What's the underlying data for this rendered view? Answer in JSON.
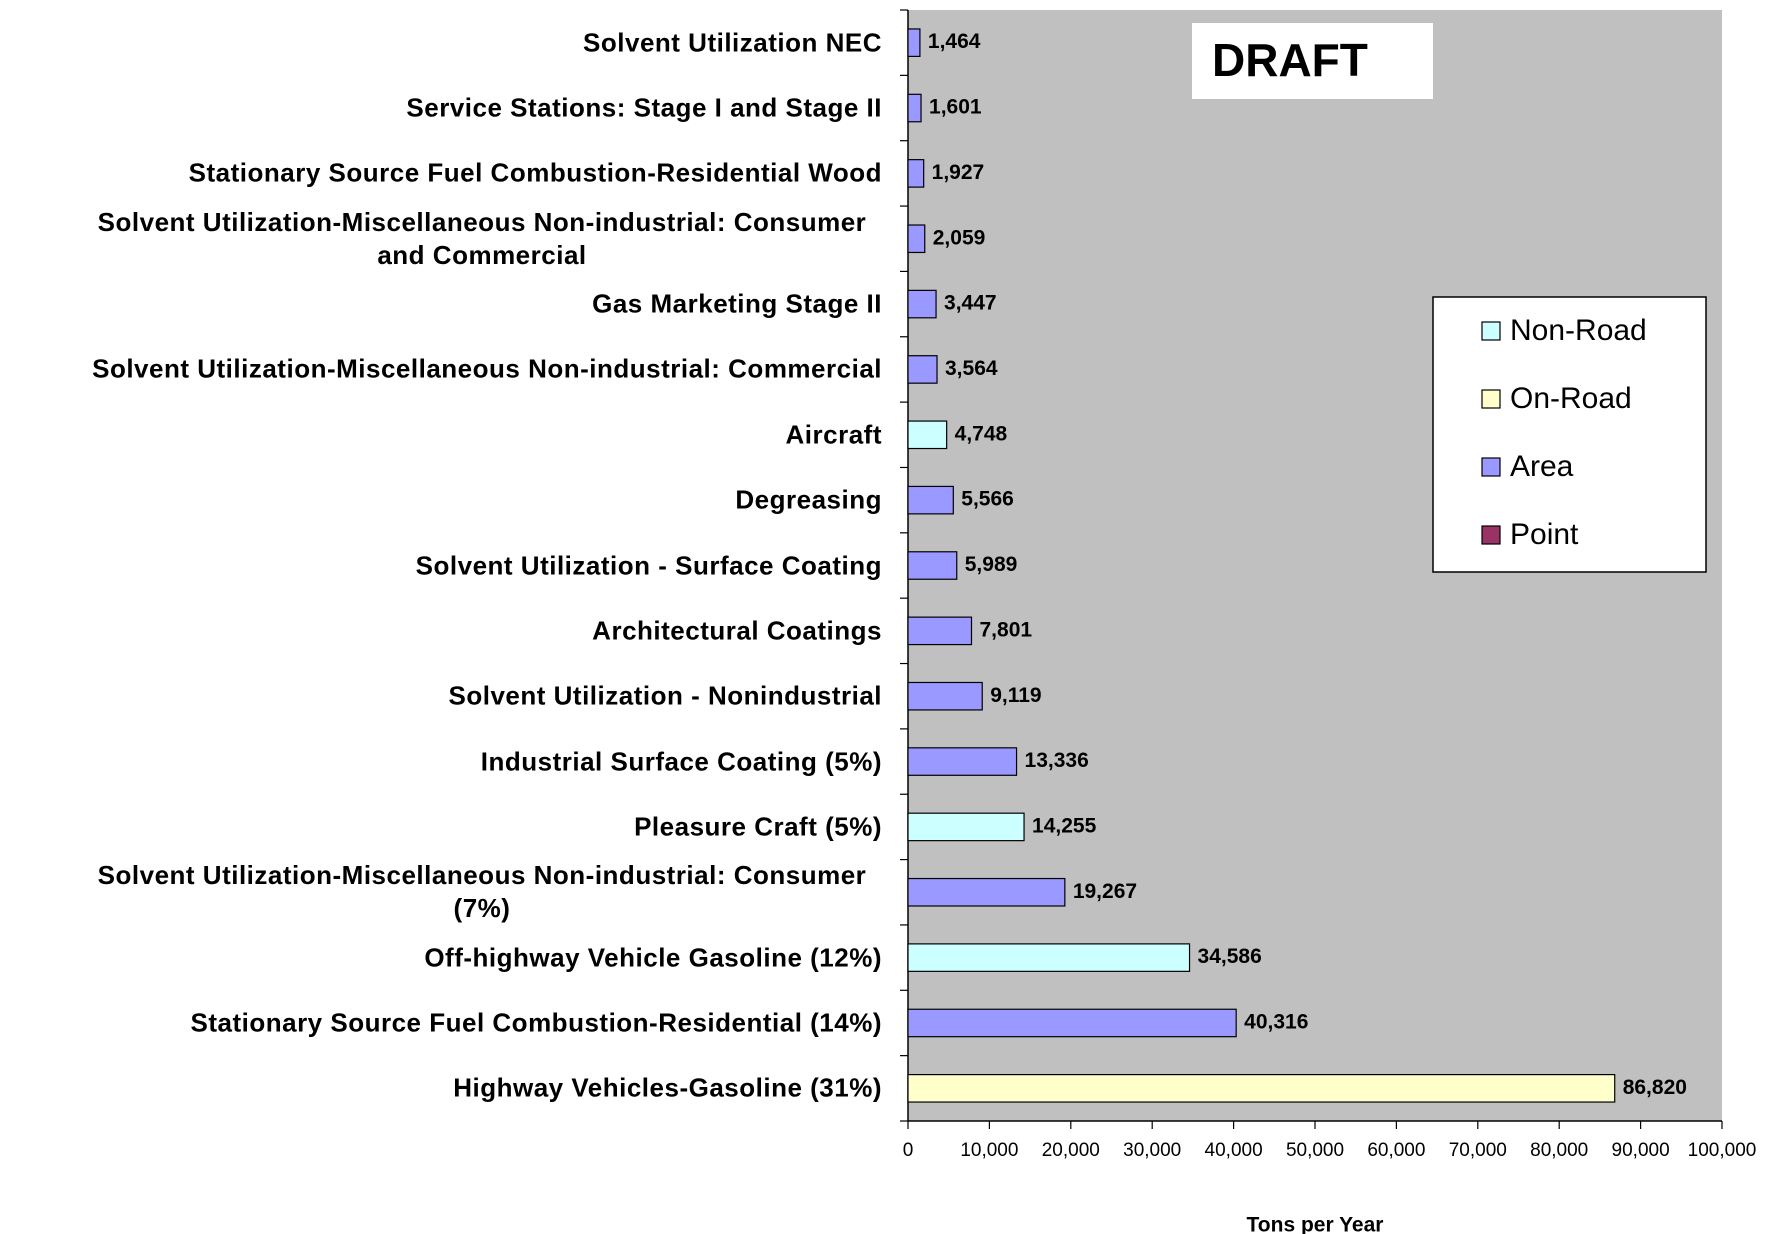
{
  "chart_data": {
    "type": "barh",
    "annotation": "DRAFT",
    "xlabel": "Tons per Year",
    "categories": [
      "Solvent Utilization NEC",
      "Service Stations: Stage I and Stage II",
      "Stationary Source Fuel Combustion-Residential Wood",
      "Solvent Utilization-Miscellaneous Non-industrial: Consumer and Commercial",
      "Gas Marketing Stage II",
      "Solvent Utilization-Miscellaneous Non-industrial: Commercial",
      "Aircraft",
      "Degreasing",
      "Solvent Utilization - Surface Coating",
      "Architectural Coatings",
      "Solvent Utilization - Nonindustrial",
      "Industrial Surface Coating (5%)",
      "Pleasure Craft (5%)",
      "Solvent Utilization-Miscellaneous Non-industrial: Consumer (7%)",
      "Off-highway Vehicle Gasoline (12%)",
      "Stationary Source Fuel Combustion-Residential (14%)",
      "Highway Vehicles-Gasoline (31%)"
    ],
    "series": [
      {
        "name": "Non-Road",
        "color": "#ccffff",
        "values": [
          null,
          null,
          null,
          null,
          null,
          null,
          4748,
          null,
          null,
          null,
          null,
          null,
          14255,
          null,
          34586,
          null,
          null
        ],
        "value_labels": [
          null,
          null,
          null,
          null,
          null,
          null,
          "4,748",
          null,
          null,
          null,
          null,
          null,
          "14,255",
          null,
          "34,586",
          null,
          null
        ]
      },
      {
        "name": "On-Road",
        "color": "#ffffcc",
        "values": [
          null,
          null,
          null,
          null,
          null,
          null,
          null,
          null,
          null,
          null,
          null,
          null,
          null,
          null,
          null,
          null,
          86820
        ],
        "value_labels": [
          null,
          null,
          null,
          null,
          null,
          null,
          null,
          null,
          null,
          null,
          null,
          null,
          null,
          null,
          null,
          null,
          "86,820"
        ]
      },
      {
        "name": "Area",
        "color": "#9999ff",
        "values": [
          1464,
          1601,
          1927,
          2059,
          3447,
          3564,
          null,
          5566,
          5989,
          7801,
          9119,
          13336,
          null,
          19267,
          null,
          40316,
          null
        ],
        "value_labels": [
          "1,464",
          "1,601",
          "1,927",
          "2,059",
          "3,447",
          "3,564",
          null,
          "5,566",
          "5,989",
          "7,801",
          "9,119",
          "13,336",
          null,
          "19,267",
          null,
          "40,316",
          null
        ]
      },
      {
        "name": "Point",
        "color": "#993366",
        "values": [
          null,
          null,
          null,
          null,
          null,
          null,
          null,
          null,
          null,
          null,
          null,
          null,
          null,
          null,
          null,
          null,
          null
        ],
        "value_labels": [
          null,
          null,
          null,
          null,
          null,
          null,
          null,
          null,
          null,
          null,
          null,
          null,
          null,
          null,
          null,
          null,
          null
        ]
      }
    ],
    "xlim": [
      0,
      100000
    ],
    "xticks": [
      0,
      {
        "value": 10000,
        "label": "10,000"
      },
      {
        "value": 20000,
        "label": "20,000"
      },
      {
        "value": 30000,
        "label": "30,000"
      },
      {
        "value": 40000,
        "label": "40,000"
      },
      {
        "value": 50000,
        "label": "50,000"
      },
      {
        "value": 60000,
        "label": "60,000"
      },
      {
        "value": 70000,
        "label": "70,000"
      },
      {
        "value": 80000,
        "label": "80,000"
      },
      {
        "value": 90000,
        "label": "90,000"
      },
      {
        "value": 100000,
        "label": "100,000"
      }
    ],
    "legend": "right"
  }
}
